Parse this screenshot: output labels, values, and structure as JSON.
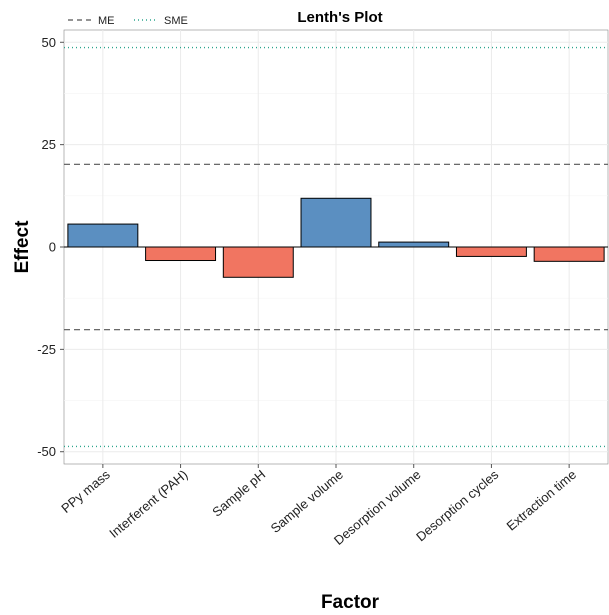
{
  "chart_data": {
    "type": "bar",
    "title": "Lenth's Plot",
    "xlabel": "Factor",
    "ylabel": "Effect",
    "categories": [
      "PPy mass",
      "Interferent (PAH)",
      "Sample pH",
      "Sample volume",
      "Desorption volume",
      "Desorption cycles",
      "Extraction time"
    ],
    "values": [
      5.6,
      -3.3,
      -7.4,
      11.9,
      1.2,
      -2.3,
      -3.5
    ],
    "ylim": [
      -53,
      53
    ],
    "yticks": [
      50,
      25,
      0,
      -25,
      -50
    ],
    "ytick_labels": [
      "50",
      "25",
      "0",
      "-25",
      "-50"
    ],
    "reference_lines": [
      {
        "name": "ME",
        "style": "dashed",
        "color": "#555555",
        "values": [
          20.2,
          -20.2
        ]
      },
      {
        "name": "SME",
        "style": "dotted",
        "color": "#2ca58d",
        "values": [
          48.7,
          -48.7
        ]
      }
    ],
    "colors": {
      "positive": "#5b8fc1",
      "negative": "#f17561"
    },
    "grid": true,
    "legend_position": "top-left"
  }
}
